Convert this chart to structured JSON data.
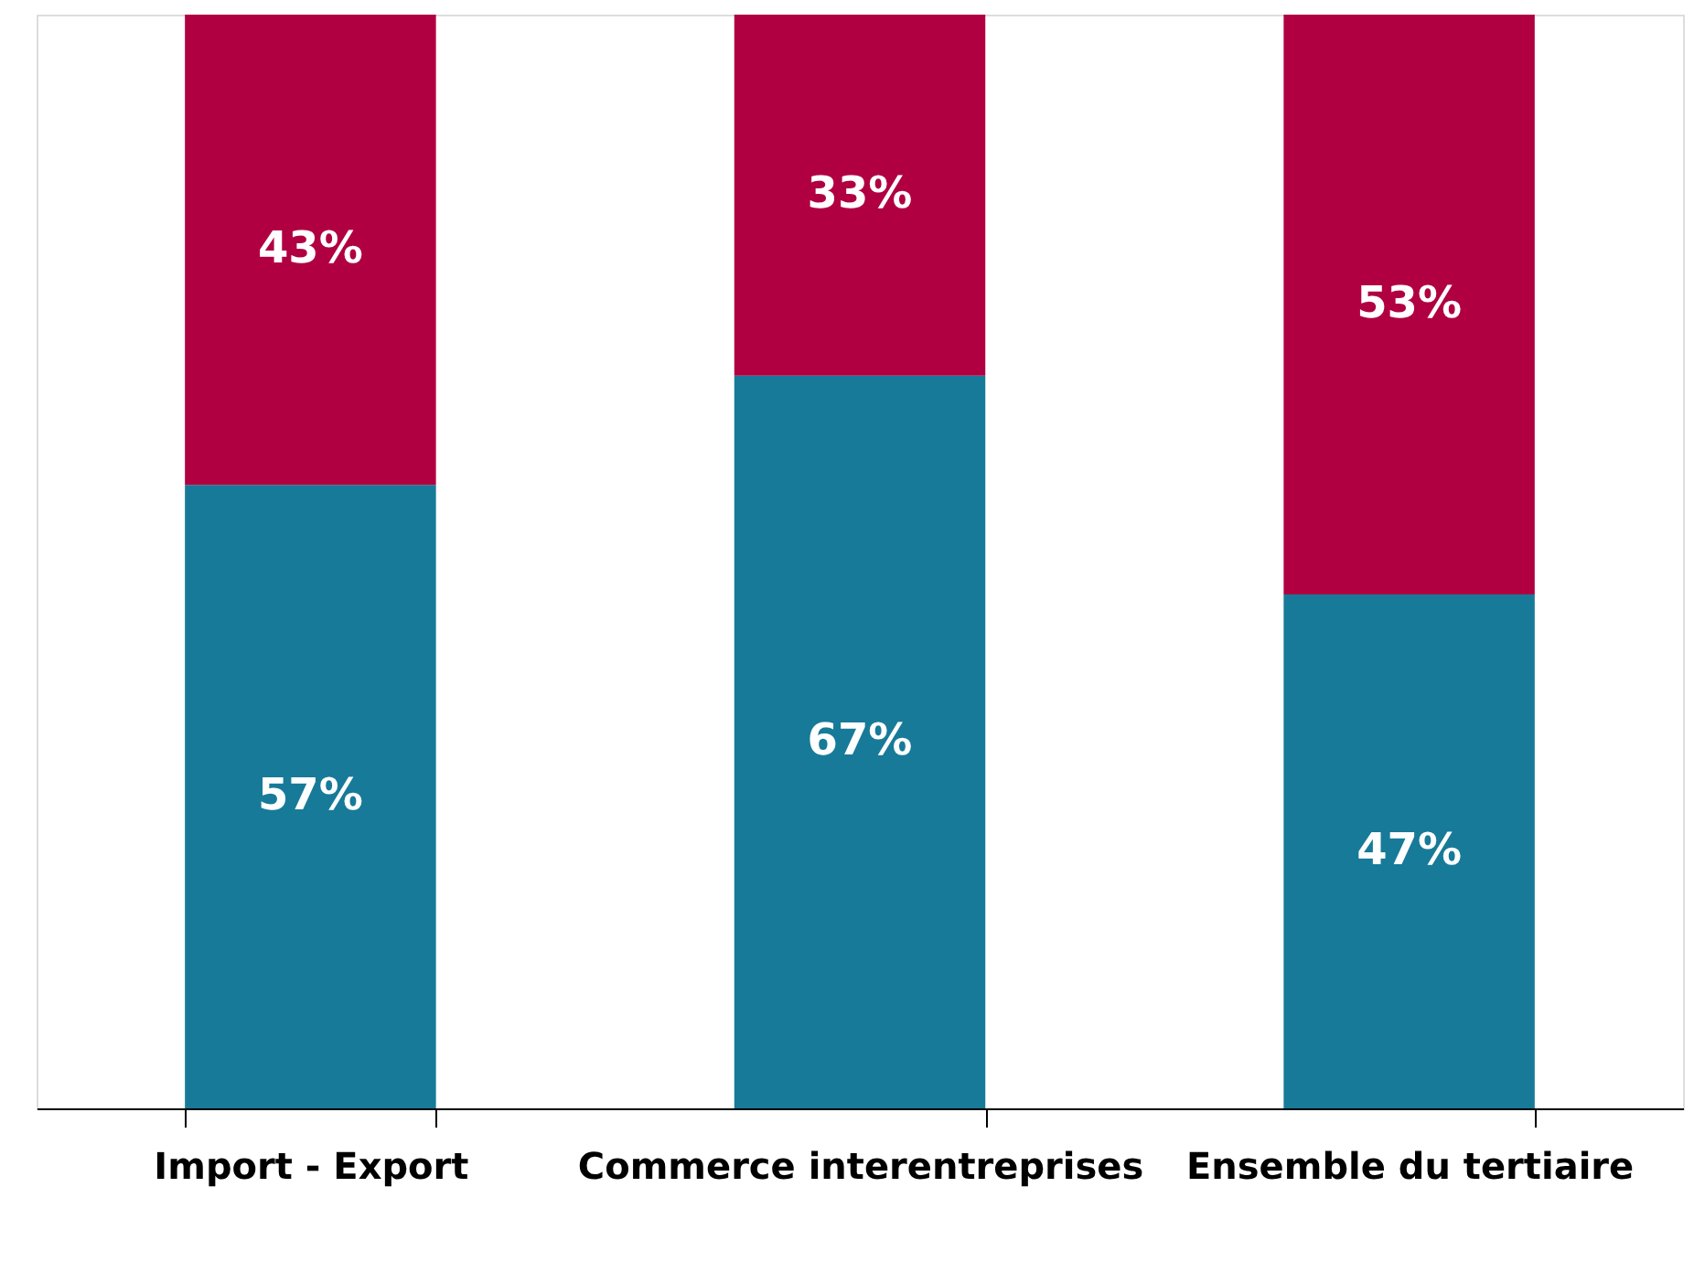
{
  "chart_data": {
    "type": "bar",
    "stacked": true,
    "categories": [
      "Import - Export",
      "Commerce interentreprises",
      "Ensemble du tertiaire"
    ],
    "series": [
      {
        "color": "#177a98",
        "values": [
          57,
          67,
          47
        ],
        "value_labels": [
          "57%",
          "67%",
          "47%"
        ]
      },
      {
        "color": "#b00042",
        "values": [
          43,
          33,
          53
        ],
        "value_labels": [
          "43%",
          "33%",
          "53%"
        ]
      }
    ],
    "tick_labels": "x",
    "grid": false,
    "legend": false
  }
}
